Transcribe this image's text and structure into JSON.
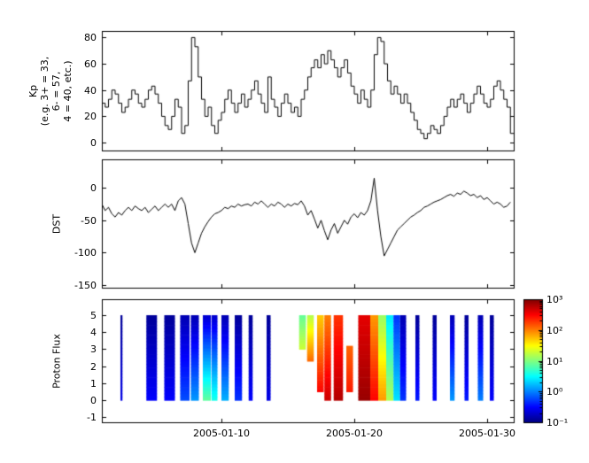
{
  "figure": {
    "background": "#ffffff",
    "frame_color": "#000000"
  },
  "chart_data": [
    {
      "type": "line",
      "name": "kp-index",
      "draw": "steps",
      "ylabel_lines": [
        "Kp",
        "(e.g. 3+ = 33,",
        "6- = 57,",
        "4 = 40, etc.)"
      ],
      "ylim": [
        -6,
        85
      ],
      "yticks": [
        0,
        20,
        40,
        60,
        80
      ],
      "xlim_days": [
        1,
        32
      ],
      "x_start_day": 1,
      "x_step_days": 0.25,
      "line_color": "#000000",
      "values": [
        30,
        27,
        33,
        40,
        37,
        30,
        23,
        27,
        33,
        40,
        37,
        30,
        27,
        33,
        40,
        43,
        37,
        30,
        20,
        13,
        10,
        20,
        33,
        27,
        7,
        13,
        47,
        80,
        73,
        50,
        33,
        20,
        27,
        13,
        7,
        17,
        23,
        33,
        40,
        30,
        23,
        30,
        37,
        27,
        33,
        40,
        47,
        37,
        30,
        23,
        50,
        33,
        27,
        20,
        30,
        37,
        30,
        23,
        27,
        20,
        33,
        40,
        50,
        57,
        63,
        57,
        67,
        60,
        70,
        63,
        57,
        50,
        57,
        63,
        53,
        43,
        37,
        30,
        40,
        33,
        27,
        40,
        67,
        80,
        77,
        60,
        47,
        37,
        43,
        37,
        30,
        37,
        30,
        23,
        17,
        10,
        7,
        3,
        7,
        13,
        10,
        7,
        13,
        20,
        27,
        33,
        27,
        33,
        37,
        30,
        23,
        30,
        37,
        43,
        37,
        30,
        27,
        33,
        43,
        47,
        40,
        33,
        27,
        7
      ]
    },
    {
      "type": "line",
      "name": "dst-index",
      "draw": "line",
      "ylabel": "DST",
      "ylim": [
        -154,
        44
      ],
      "yticks": [
        0,
        -50,
        -100,
        -150
      ],
      "xlim_days": [
        1,
        32
      ],
      "x_start_day": 1,
      "x_step_days": 0.25,
      "line_color": "#000000",
      "values": [
        -25,
        -35,
        -30,
        -40,
        -45,
        -38,
        -42,
        -35,
        -30,
        -35,
        -28,
        -32,
        -35,
        -30,
        -38,
        -33,
        -28,
        -35,
        -30,
        -25,
        -30,
        -25,
        -35,
        -20,
        -15,
        -25,
        -55,
        -85,
        -100,
        -85,
        -70,
        -60,
        -52,
        -45,
        -40,
        -38,
        -35,
        -30,
        -32,
        -28,
        -30,
        -25,
        -28,
        -26,
        -25,
        -28,
        -22,
        -25,
        -20,
        -25,
        -30,
        -25,
        -28,
        -22,
        -25,
        -30,
        -25,
        -28,
        -24,
        -26,
        -20,
        -28,
        -42,
        -35,
        -48,
        -62,
        -50,
        -66,
        -80,
        -65,
        -55,
        -70,
        -60,
        -50,
        -56,
        -45,
        -40,
        -46,
        -38,
        -42,
        -35,
        -20,
        15,
        -35,
        -75,
        -105,
        -95,
        -85,
        -75,
        -65,
        -60,
        -55,
        -50,
        -45,
        -42,
        -38,
        -35,
        -30,
        -28,
        -25,
        -22,
        -20,
        -18,
        -15,
        -12,
        -10,
        -13,
        -8,
        -10,
        -5,
        -8,
        -12,
        -10,
        -15,
        -12,
        -18,
        -15,
        -20,
        -25,
        -22,
        -25,
        -30,
        -28,
        -22
      ]
    },
    {
      "type": "heatmap",
      "name": "proton-flux",
      "ylabel": "Proton Flux",
      "ylim": [
        -1.3,
        5.94
      ],
      "yticks": [
        -1,
        0,
        1,
        2,
        3,
        4,
        5
      ],
      "xlim_days": [
        1,
        32
      ],
      "xticks": [
        {
          "day": 10,
          "label": "2005-01-10"
        },
        {
          "day": 20,
          "label": "2005-01-20"
        },
        {
          "day": 30,
          "label": "2005-01-30"
        }
      ],
      "colormap": "jet",
      "clim_log10": [
        -1,
        3
      ],
      "stripe_format": [
        "day_start",
        "day_end",
        "y_low",
        "y_high",
        "log10_flux_at_bottom",
        "log10_flux_at_top"
      ],
      "stripes": [
        [
          2.4,
          2.55,
          0,
          5,
          -0.6,
          -0.9
        ],
        [
          4.35,
          5.15,
          0,
          5,
          -0.5,
          -0.9
        ],
        [
          5.7,
          6.5,
          0,
          5,
          -0.5,
          -0.9
        ],
        [
          6.9,
          7.6,
          0,
          5,
          -0.2,
          -0.8
        ],
        [
          7.7,
          8.3,
          0,
          5,
          0.1,
          -0.8
        ],
        [
          8.6,
          9.2,
          0,
          5,
          0.9,
          -0.7
        ],
        [
          9.25,
          9.7,
          0,
          5,
          0.6,
          -0.7
        ],
        [
          10.0,
          10.55,
          0,
          5,
          0.2,
          -0.8
        ],
        [
          11.0,
          11.55,
          0,
          5,
          -0.3,
          -0.9
        ],
        [
          12.05,
          12.35,
          0,
          5,
          -0.5,
          -0.9
        ],
        [
          13.4,
          13.7,
          0,
          5,
          -0.6,
          -0.9
        ],
        [
          15.85,
          16.35,
          3.0,
          5,
          1.3,
          0.9
        ],
        [
          16.45,
          16.95,
          2.3,
          5,
          2.1,
          1.2
        ],
        [
          17.2,
          17.7,
          0.5,
          5,
          2.5,
          1.7
        ],
        [
          17.75,
          18.25,
          0,
          5,
          2.7,
          2.0
        ],
        [
          18.45,
          19.15,
          0,
          5,
          2.8,
          2.3
        ],
        [
          19.4,
          19.9,
          0.5,
          3.2,
          2.4,
          2.1
        ],
        [
          20.3,
          21.2,
          0,
          5,
          2.9,
          2.6
        ],
        [
          21.2,
          21.8,
          0,
          5,
          2.5,
          1.9
        ],
        [
          21.8,
          22.4,
          0,
          5,
          1.9,
          1.1
        ],
        [
          22.4,
          22.95,
          0,
          5,
          1.2,
          0.4
        ],
        [
          22.95,
          23.45,
          0,
          5,
          0.4,
          -0.3
        ],
        [
          23.45,
          23.9,
          0,
          5,
          -0.3,
          -0.8
        ],
        [
          24.6,
          24.9,
          0,
          5,
          -0.4,
          -0.9
        ],
        [
          25.9,
          26.2,
          0,
          5,
          -0.5,
          -0.9
        ],
        [
          27.2,
          27.55,
          0,
          5,
          0.1,
          -0.8
        ],
        [
          28.3,
          28.6,
          0,
          5,
          -0.4,
          -0.9
        ],
        [
          29.3,
          29.7,
          0,
          5,
          0.0,
          -0.8
        ],
        [
          30.2,
          30.5,
          0,
          5,
          -0.5,
          -0.9
        ]
      ]
    }
  ],
  "colorbar": {
    "orientation": "vertical",
    "scale": "log",
    "colormap": "jet",
    "ticks": [
      {
        "v": 3,
        "label": "10³"
      },
      {
        "v": 2,
        "label": "10²"
      },
      {
        "v": 1,
        "label": "10¹"
      },
      {
        "v": 0,
        "label": "10⁰"
      },
      {
        "v": -1,
        "label": "10⁻¹"
      }
    ]
  }
}
